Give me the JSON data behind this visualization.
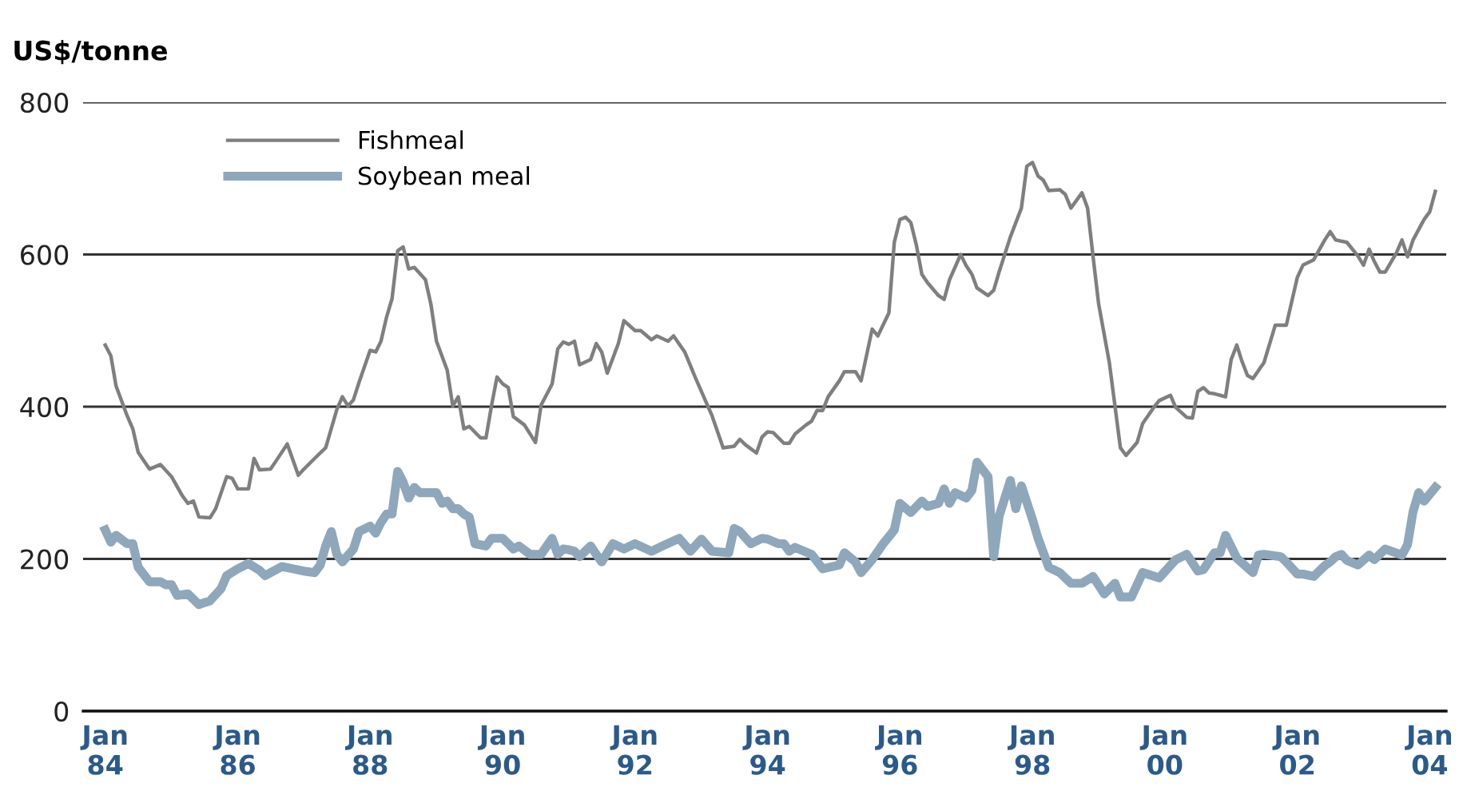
{
  "chart_data": {
    "type": "line",
    "ylabel": "US$/tonne",
    "xlim": [
      "1983-09",
      "2004-04"
    ],
    "ylim": [
      0,
      800
    ],
    "xticks": [
      {
        "value": "1984-01",
        "label": "Jan\n84"
      },
      {
        "value": "1986-01",
        "label": "Jan\n86"
      },
      {
        "value": "1988-01",
        "label": "Jan\n88"
      },
      {
        "value": "1990-01",
        "label": "Jan\n90"
      },
      {
        "value": "1992-01",
        "label": "Jan\n92"
      },
      {
        "value": "1994-01",
        "label": "Jan\n94"
      },
      {
        "value": "1996-01",
        "label": "Jan\n96"
      },
      {
        "value": "1998-01",
        "label": "Jan\n98"
      },
      {
        "value": "2000-01",
        "label": "Jan\n00"
      },
      {
        "value": "2002-01",
        "label": "Jan\n02"
      },
      {
        "value": "2004-01",
        "label": "Jan\n04"
      }
    ],
    "yticks": [
      0,
      200,
      400,
      600,
      800
    ],
    "grid": "y",
    "legend": "top left",
    "marker": "none",
    "line_style": "solid",
    "series": [
      {
        "name": "Fishmeal",
        "color": "#7f7f7f",
        "x": [
          "1984-01",
          "1984-02",
          "1984-03",
          "1984-05",
          "1984-06",
          "1984-07",
          "1984-09",
          "1984-11",
          "1985-01",
          "1985-03",
          "1985-04",
          "1985-05",
          "1985-06",
          "1985-08",
          "1985-09",
          "1985-11",
          "1985-12",
          "1986-01",
          "1986-03",
          "1986-04",
          "1986-05",
          "1986-07",
          "1986-08",
          "1986-10",
          "1986-12",
          "1987-01",
          "1987-03",
          "1987-05",
          "1987-07",
          "1987-08",
          "1987-09",
          "1987-10",
          "1987-11",
          "1988-01",
          "1988-02",
          "1988-03",
          "1988-04",
          "1988-05",
          "1988-06",
          "1988-07",
          "1988-08",
          "1988-09",
          "1988-11",
          "1988-12",
          "1989-01",
          "1989-03",
          "1989-04",
          "1989-05",
          "1989-06",
          "1989-07",
          "1989-09",
          "1989-10",
          "1989-11",
          "1989-12",
          "1990-01",
          "1990-02",
          "1990-03",
          "1990-05",
          "1990-07",
          "1990-08",
          "1990-10",
          "1990-11",
          "1990-12",
          "1991-01",
          "1991-02",
          "1991-03",
          "1991-05",
          "1991-06",
          "1991-07",
          "1991-08",
          "1991-10",
          "1991-11",
          "1992-01",
          "1992-02",
          "1992-04",
          "1992-05",
          "1992-07",
          "1992-08",
          "1992-10",
          "1992-12",
          "1993-03",
          "1993-05",
          "1993-07",
          "1993-08",
          "1993-09",
          "1993-11",
          "1993-12",
          "1994-01",
          "1994-02",
          "1994-04",
          "1994-05",
          "1994-06",
          "1994-08",
          "1994-09",
          "1994-10",
          "1994-11",
          "1994-12",
          "1995-02",
          "1995-03",
          "1995-05",
          "1995-06",
          "1995-08",
          "1995-09",
          "1995-11",
          "1995-12",
          "1996-01",
          "1996-02",
          "1996-03",
          "1996-04",
          "1996-05",
          "1996-06",
          "1996-08",
          "1996-09",
          "1996-10",
          "1996-12",
          "1997-01",
          "1997-02",
          "1997-03",
          "1997-05",
          "1997-06",
          "1997-07",
          "1997-09",
          "1997-11",
          "1997-12",
          "1998-01",
          "1998-02",
          "1998-03",
          "1998-04",
          "1998-06",
          "1998-07",
          "1998-08",
          "1998-10",
          "1998-11",
          "1998-12",
          "1999-01",
          "1999-03",
          "1999-05",
          "1999-06",
          "1999-08",
          "1999-09",
          "1999-11",
          "1999-12",
          "2000-02",
          "2000-03",
          "2000-05",
          "2000-06",
          "2000-07",
          "2000-08",
          "2000-09",
          "2000-10",
          "2000-12",
          "2001-01",
          "2001-02",
          "2001-03",
          "2001-04",
          "2001-05",
          "2001-07",
          "2001-09",
          "2001-11",
          "2002-01",
          "2002-02",
          "2002-04",
          "2002-06",
          "2002-07",
          "2002-08",
          "2002-10",
          "2002-12",
          "2003-01",
          "2003-02",
          "2003-03",
          "2003-04",
          "2003-05",
          "2003-07",
          "2003-08",
          "2003-09",
          "2003-10",
          "2003-12",
          "2004-01",
          "2004-02"
        ],
        "values": [
          481,
          467,
          427,
          388,
          371,
          340,
          318,
          324,
          308,
          283,
          273,
          276,
          255,
          254,
          266,
          308,
          306,
          292,
          292,
          332,
          317,
          318,
          329,
          351,
          310,
          318,
          332,
          346,
          396,
          413,
          401,
          409,
          432,
          474,
          472,
          486,
          518,
          542,
          605,
          610,
          581,
          583,
          567,
          535,
          486,
          448,
          401,
          413,
          371,
          374,
          359,
          359,
          402,
          439,
          430,
          425,
          387,
          376,
          353,
          402,
          430,
          476,
          485,
          482,
          486,
          455,
          462,
          483,
          472,
          444,
          483,
          513,
          500,
          500,
          488,
          493,
          486,
          493,
          472,
          437,
          388,
          346,
          348,
          357,
          350,
          339,
          360,
          367,
          366,
          352,
          352,
          364,
          376,
          381,
          395,
          395,
          413,
          434,
          446,
          446,
          434,
          502,
          493,
          523,
          616,
          646,
          649,
          642,
          612,
          574,
          563,
          546,
          541,
          567,
          600,
          585,
          574,
          556,
          546,
          553,
          577,
          623,
          661,
          716,
          721,
          703,
          698,
          684,
          685,
          679,
          661,
          681,
          661,
          598,
          535,
          458,
          346,
          336,
          353,
          378,
          399,
          408,
          415,
          399,
          386,
          385,
          420,
          425,
          418,
          417,
          413,
          462,
          481,
          460,
          441,
          437,
          458,
          507,
          507,
          570,
          586,
          593,
          619,
          630,
          619,
          616,
          598,
          586,
          607,
          591,
          577,
          577,
          602,
          619,
          597,
          619,
          646,
          656,
          683
        ]
      },
      {
        "name": "Soybean meal",
        "color": "#8fa7bb",
        "x": [
          "1984-01",
          "1984-02",
          "1984-03",
          "1984-05",
          "1984-06",
          "1984-07",
          "1984-09",
          "1984-11",
          "1984-12",
          "1985-01",
          "1985-02",
          "1985-04",
          "1985-06",
          "1985-08",
          "1985-10",
          "1985-11",
          "1986-01",
          "1986-03",
          "1986-05",
          "1986-06",
          "1986-09",
          "1986-11",
          "1987-01",
          "1987-03",
          "1987-04",
          "1987-05",
          "1987-06",
          "1987-07",
          "1987-08",
          "1987-10",
          "1987-11",
          "1988-01",
          "1988-02",
          "1988-03",
          "1988-04",
          "1988-05",
          "1988-06",
          "1988-07",
          "1988-08",
          "1988-09",
          "1988-10",
          "1989-01",
          "1989-02",
          "1989-03",
          "1989-04",
          "1989-05",
          "1989-06",
          "1989-07",
          "1989-08",
          "1989-10",
          "1989-11",
          "1990-01",
          "1990-02",
          "1990-03",
          "1990-04",
          "1990-06",
          "1990-08",
          "1990-10",
          "1990-11",
          "1990-12",
          "1991-01",
          "1991-02",
          "1991-03",
          "1991-05",
          "1991-06",
          "1991-07",
          "1991-09",
          "1991-11",
          "1992-01",
          "1992-04",
          "1992-06",
          "1992-09",
          "1992-11",
          "1993-01",
          "1993-03",
          "1993-06",
          "1993-07",
          "1993-08",
          "1993-10",
          "1993-12",
          "1994-01",
          "1994-03",
          "1994-04",
          "1994-05",
          "1994-06",
          "1994-09",
          "1994-11",
          "1995-02",
          "1995-03",
          "1995-05",
          "1995-06",
          "1995-08",
          "1995-10",
          "1995-12",
          "1996-01",
          "1996-03",
          "1996-05",
          "1996-06",
          "1996-08",
          "1996-09",
          "1996-10",
          "1996-11",
          "1997-01",
          "1997-02",
          "1997-03",
          "1997-05",
          "1997-06",
          "1997-07",
          "1997-09",
          "1997-10",
          "1997-11",
          "1998-01",
          "1998-02",
          "1998-04",
          "1998-06",
          "1998-08",
          "1998-10",
          "1998-12",
          "1999-02",
          "1999-04",
          "1999-05",
          "1999-07",
          "1999-09",
          "1999-12",
          "2000-03",
          "2000-05",
          "2000-07",
          "2000-08",
          "2000-10",
          "2000-11",
          "2000-12",
          "2001-02",
          "2001-05",
          "2001-06",
          "2001-07",
          "2001-10",
          "2001-11",
          "2002-01",
          "2002-02",
          "2002-04",
          "2002-06",
          "2002-07",
          "2002-08",
          "2002-09",
          "2002-10",
          "2002-12",
          "2003-02",
          "2003-03",
          "2003-05",
          "2003-08",
          "2003-09",
          "2003-10",
          "2003-11",
          "2003-12",
          "2004-02"
        ],
        "values": [
          238,
          222,
          231,
          220,
          220,
          189,
          170,
          170,
          166,
          166,
          152,
          154,
          140,
          145,
          161,
          178,
          187,
          194,
          185,
          178,
          190,
          187,
          184,
          182,
          192,
          217,
          236,
          206,
          196,
          213,
          236,
          243,
          234,
          248,
          259,
          259,
          315,
          301,
          280,
          294,
          287,
          287,
          273,
          276,
          266,
          266,
          259,
          255,
          220,
          217,
          227,
          227,
          220,
          213,
          217,
          206,
          206,
          227,
          206,
          213,
          212,
          210,
          203,
          217,
          206,
          196,
          220,
          213,
          220,
          210,
          217,
          227,
          210,
          226,
          210,
          208,
          240,
          236,
          220,
          227,
          226,
          220,
          220,
          210,
          215,
          206,
          187,
          192,
          208,
          196,
          182,
          199,
          220,
          238,
          273,
          261,
          276,
          269,
          273,
          292,
          273,
          287,
          280,
          290,
          327,
          308,
          203,
          256,
          303,
          266,
          296,
          252,
          227,
          189,
          182,
          168,
          168,
          177,
          154,
          168,
          150,
          150,
          182,
          175,
          199,
          206,
          184,
          186,
          208,
          208,
          231,
          201,
          182,
          205,
          206,
          203,
          196,
          180,
          180,
          177,
          191,
          196,
          203,
          206,
          198,
          192,
          205,
          199,
          213,
          205,
          219,
          262,
          287,
          276,
          294
        ]
      }
    ]
  }
}
